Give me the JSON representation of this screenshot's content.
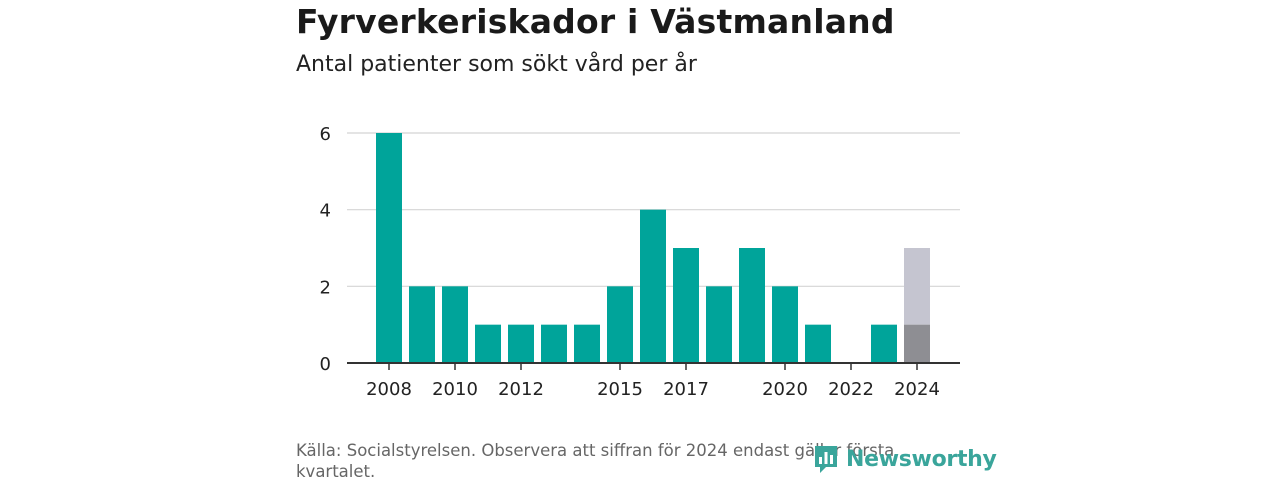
{
  "title": "Fyrverkeriskador i Västmanland",
  "subtitle": "Antal patienter som sökt vård per år",
  "source": "Källa: Socialstyrelsen. Observera att siffran för 2024 endast gäller första kvartalet.",
  "logo": {
    "text": "Newsworthy",
    "icon": "newsworthy-logo-icon"
  },
  "colors": {
    "bar": "#00a49a",
    "bar_partial": "#8e8e93",
    "bar_remainder": "#c5c5d0",
    "grid": "#d4d4d4",
    "axis": "#333333",
    "logo": "#3aa59b"
  },
  "chart_data": {
    "type": "bar",
    "categories": [
      "2008",
      "2009",
      "2010",
      "2011",
      "2012",
      "2013",
      "2014",
      "2015",
      "2016",
      "2017",
      "2018",
      "2019",
      "2020",
      "2021",
      "2022",
      "2023",
      "2024"
    ],
    "values": [
      6,
      2,
      2,
      1,
      1,
      1,
      1,
      2,
      4,
      3,
      2,
      3,
      2,
      1,
      0,
      1,
      1
    ],
    "extra_values": [
      0,
      0,
      0,
      0,
      0,
      0,
      0,
      0,
      0,
      0,
      0,
      0,
      0,
      0,
      0,
      0,
      2
    ],
    "tick_labels": [
      "2008",
      "2010",
      "2012",
      "2015",
      "2017",
      "2020",
      "2022",
      "2024"
    ],
    "yticks": [
      0,
      2,
      4,
      6
    ],
    "ylim": [
      0,
      6
    ],
    "xlabel": "",
    "ylabel": "",
    "grid": true,
    "legend": "none"
  }
}
